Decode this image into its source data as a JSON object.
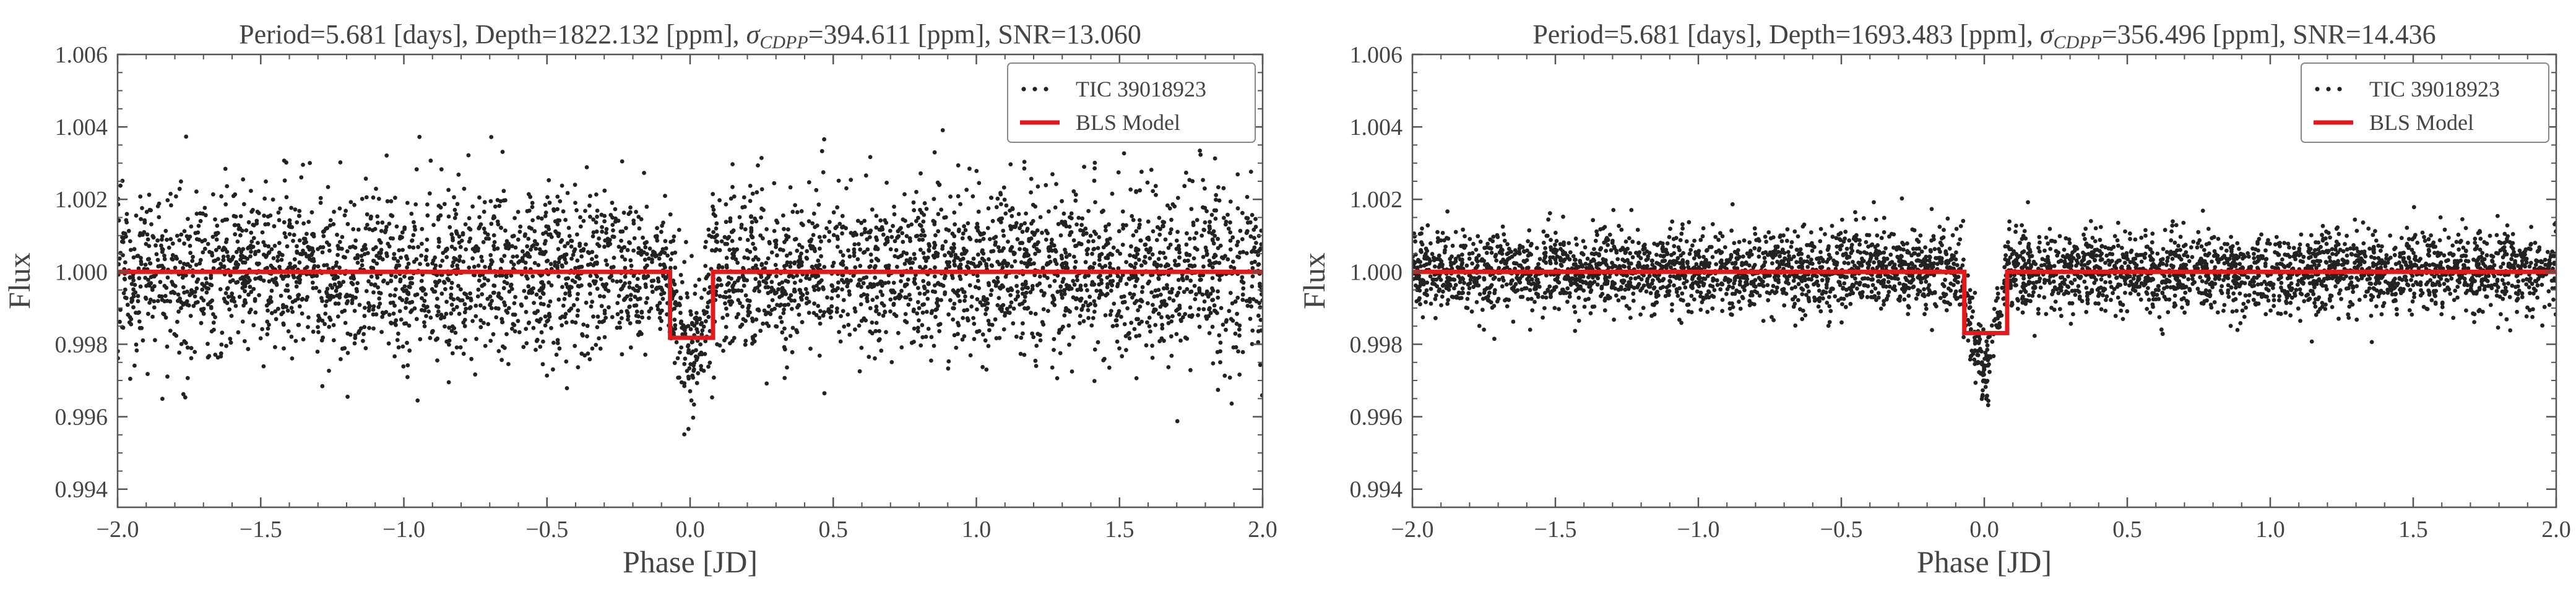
{
  "chart_data": [
    {
      "type": "scatter",
      "title": {
        "period": "Period=5.681 [days],",
        "depth": "Depth=1822.132 [ppm],",
        "sigma_symbol": "σ",
        "sigma_sub": "CDPP",
        "sigma_value": "=394.611 [ppm],",
        "snr": "SNR=13.060"
      },
      "xlabel": "Phase [JD]",
      "ylabel": "Flux",
      "xlim": [
        -2.0,
        2.0
      ],
      "ylim": [
        0.9935,
        1.006
      ],
      "xticks": [
        -2.0,
        -1.5,
        -1.0,
        -0.5,
        0.0,
        0.5,
        1.0,
        1.5,
        2.0
      ],
      "xtick_labels": [
        "−2.0",
        "−1.5",
        "−1.0",
        "−0.5",
        "0.0",
        "0.5",
        "1.0",
        "1.5",
        "2.0"
      ],
      "yticks": [
        0.994,
        0.996,
        0.998,
        1.0,
        1.002,
        1.004,
        1.006
      ],
      "ytick_labels": [
        "0.994",
        "0.996",
        "0.998",
        "1.000",
        "1.002",
        "1.004",
        "1.006"
      ],
      "legend": [
        {
          "label": "TIC 39018923",
          "kind": "points",
          "color": "#222222"
        },
        {
          "label": "BLS Model",
          "kind": "line",
          "color": "#e31a1c"
        }
      ],
      "legend_position": "top-right",
      "points": {
        "count": 4200,
        "baseline": 1.0,
        "scatter_sigma_ppm": 1150,
        "transit_center": 0.0,
        "transit_halfwidth": 0.08,
        "transit_depth_ppm": 2600,
        "color": "#222222"
      },
      "model": {
        "baseline": 1.0,
        "in_transit_level": 0.99818,
        "ingress": -0.07,
        "egress": 0.08,
        "color": "#e31a1c"
      }
    },
    {
      "type": "scatter",
      "title": {
        "period": "Period=5.681 [days],",
        "depth": "Depth=1693.483 [ppm],",
        "sigma_symbol": "σ",
        "sigma_sub": "CDPP",
        "sigma_value": "=356.496 [ppm],",
        "snr": "SNR=14.436"
      },
      "xlabel": "Phase [JD]",
      "ylabel": "Flux",
      "xlim": [
        -2.0,
        2.0
      ],
      "ylim": [
        0.9935,
        1.006
      ],
      "xticks": [
        -2.0,
        -1.5,
        -1.0,
        -0.5,
        0.0,
        0.5,
        1.0,
        1.5,
        2.0
      ],
      "xtick_labels": [
        "−2.0",
        "−1.5",
        "−1.0",
        "−0.5",
        "0.0",
        "0.5",
        "1.0",
        "1.5",
        "2.0"
      ],
      "yticks": [
        0.994,
        0.996,
        0.998,
        1.0,
        1.002,
        1.004,
        1.006
      ],
      "ytick_labels": [
        "0.994",
        "0.996",
        "0.998",
        "1.000",
        "1.002",
        "1.004",
        "1.006"
      ],
      "legend": [
        {
          "label": "TIC 39018923",
          "kind": "points",
          "color": "#222222"
        },
        {
          "label": "BLS Model",
          "kind": "line",
          "color": "#e31a1c"
        }
      ],
      "legend_position": "top-right",
      "points": {
        "count": 4200,
        "baseline": 1.0,
        "scatter_sigma_ppm": 550,
        "transit_center": 0.0,
        "transit_halfwidth": 0.08,
        "transit_depth_ppm": 2700,
        "color": "#222222"
      },
      "model": {
        "baseline": 1.0,
        "in_transit_level": 0.99831,
        "ingress": -0.07,
        "egress": 0.08,
        "color": "#e31a1c"
      }
    }
  ]
}
